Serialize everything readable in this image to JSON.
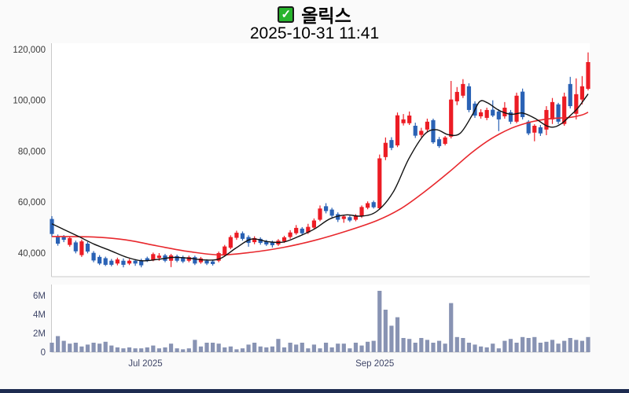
{
  "header": {
    "title": "올릭스",
    "timestamp": "2025-10-31 11:41",
    "checkbox_checked": true,
    "checkbox_glyph": "✓"
  },
  "colors": {
    "up_candle": "#ec1c24",
    "down_candle": "#2a62b5",
    "ma_short_line": "#111111",
    "ma_long_line": "#e8282d",
    "volume_bar": "#8893b3",
    "checkbox_green": "#27b42c",
    "axis_line": "#c9c9c9",
    "price_label": "#3a3a3a",
    "month_label": "#3f4668",
    "plot_bg": "#ffffff",
    "page_bg": "#fafafa",
    "bottom_bar": "#1d2b50"
  },
  "chart_data": {
    "type": "candlestick_volume",
    "title": "올릭스",
    "subtitle": "2025-10-31 11:41",
    "grid": "off",
    "legend": "none",
    "price_axis": {
      "min": 30500,
      "max": 122500,
      "tick_interval": 20000
    },
    "volume_axis": {
      "min": 0,
      "max": 7.3,
      "unit": "M"
    },
    "price_ticks": [
      {
        "label": "120,000",
        "value": 120000
      },
      {
        "label": "100,000",
        "value": 100000
      },
      {
        "label": "80,000",
        "value": 80000
      },
      {
        "label": "60,000",
        "value": 60000
      },
      {
        "label": "40,000",
        "value": 40000
      }
    ],
    "volume_ticks": [
      {
        "label": "6M",
        "value": 6
      },
      {
        "label": "4M",
        "value": 4
      },
      {
        "label": "2M",
        "value": 2
      },
      {
        "label": "0",
        "value": 0
      }
    ],
    "x_ticks": [
      {
        "label": "Jul 2025",
        "index": 15.7
      },
      {
        "label": "Sep 2025",
        "index": 54.2
      }
    ],
    "candles_format": [
      "open",
      "high",
      "low",
      "close",
      "volume_millions"
    ],
    "candles": [
      [
        53400,
        54500,
        46400,
        47500,
        1.0
      ],
      [
        46300,
        47300,
        42900,
        43700,
        1.7
      ],
      [
        46300,
        47100,
        44300,
        45200,
        1.2
      ],
      [
        43200,
        46600,
        42500,
        45900,
        0.9
      ],
      [
        44200,
        44900,
        39900,
        40700,
        1.0
      ],
      [
        39200,
        45300,
        38500,
        44600,
        0.6
      ],
      [
        43700,
        44400,
        39900,
        40600,
        0.8
      ],
      [
        40100,
        40800,
        36400,
        37100,
        1.0
      ],
      [
        38500,
        39200,
        35300,
        35900,
        0.9
      ],
      [
        38000,
        38600,
        34900,
        35400,
        1.1
      ],
      [
        37000,
        37700,
        34800,
        35400,
        0.7
      ],
      [
        35900,
        38200,
        35200,
        37500,
        0.5
      ],
      [
        37000,
        37900,
        34400,
        35400,
        0.4
      ],
      [
        35900,
        37700,
        35300,
        37000,
        0.5
      ],
      [
        37000,
        37600,
        35000,
        35900,
        0.4
      ],
      [
        37200,
        37800,
        34400,
        35200,
        0.4
      ],
      [
        38000,
        38600,
        36500,
        37000,
        0.5
      ],
      [
        37200,
        40200,
        36800,
        39600,
        0.7
      ],
      [
        38100,
        40000,
        37000,
        39000,
        0.4
      ],
      [
        39100,
        39700,
        36400,
        37000,
        0.5
      ],
      [
        37000,
        39700,
        34500,
        39100,
        0.9
      ],
      [
        38800,
        39400,
        36400,
        37000,
        0.4
      ],
      [
        38400,
        39000,
        36100,
        36700,
        0.3
      ],
      [
        37000,
        39000,
        36400,
        38400,
        0.4
      ],
      [
        38400,
        39000,
        35300,
        35900,
        1.3
      ],
      [
        36400,
        38500,
        35800,
        37900,
        0.6
      ],
      [
        37000,
        37600,
        35300,
        35900,
        1.0
      ],
      [
        36700,
        37300,
        35100,
        35700,
        1.0
      ],
      [
        37000,
        40600,
        36400,
        40000,
        0.9
      ],
      [
        39500,
        43200,
        38900,
        42600,
        0.5
      ],
      [
        42100,
        47000,
        41500,
        46300,
        0.6
      ],
      [
        46000,
        48800,
        45200,
        48000,
        0.3
      ],
      [
        47800,
        48500,
        44900,
        45600,
        0.4
      ],
      [
        46300,
        47000,
        42500,
        44000,
        0.8
      ],
      [
        44300,
        46600,
        43500,
        45900,
        1.0
      ],
      [
        45600,
        46200,
        43300,
        44000,
        0.6
      ],
      [
        44600,
        45200,
        42800,
        43400,
        0.5
      ],
      [
        44300,
        44900,
        42200,
        43100,
        0.6
      ],
      [
        43400,
        45500,
        42800,
        44900,
        1.4
      ],
      [
        44600,
        46800,
        44000,
        46200,
        0.5
      ],
      [
        46300,
        49000,
        45600,
        48100,
        1.0
      ],
      [
        47800,
        51000,
        47200,
        49900,
        0.8
      ],
      [
        49600,
        50200,
        47000,
        47800,
        1.0
      ],
      [
        48100,
        51500,
        47500,
        50300,
        0.4
      ],
      [
        50000,
        53600,
        49300,
        52800,
        0.8
      ],
      [
        53100,
        58700,
        52500,
        57500,
        0.4
      ],
      [
        58400,
        59600,
        55600,
        56500,
        1.0
      ],
      [
        57100,
        57800,
        54000,
        54700,
        0.5
      ],
      [
        55300,
        56000,
        52200,
        53100,
        0.9
      ],
      [
        53400,
        55000,
        51900,
        54400,
        0.9
      ],
      [
        54100,
        54700,
        52200,
        52800,
        0.4
      ],
      [
        53100,
        55300,
        52500,
        54700,
        1.0
      ],
      [
        54400,
        58700,
        53800,
        58100,
        0.7
      ],
      [
        57800,
        60300,
        57200,
        59600,
        1.1
      ],
      [
        60000,
        60600,
        57500,
        58000,
        1.2
      ],
      [
        57600,
        78700,
        57000,
        77200,
        6.5
      ],
      [
        77700,
        85400,
        76500,
        83300,
        4.5
      ],
      [
        84400,
        85500,
        80400,
        81300,
        2.8
      ],
      [
        82300,
        95200,
        81600,
        94100,
        3.7
      ],
      [
        91000,
        94600,
        90100,
        92500,
        1.5
      ],
      [
        91000,
        95600,
        90300,
        94000,
        1.4
      ],
      [
        90000,
        91200,
        85200,
        86100,
        1.0
      ],
      [
        86400,
        89200,
        85500,
        88000,
        1.5
      ],
      [
        88500,
        92800,
        87600,
        91600,
        1.3
      ],
      [
        92200,
        92800,
        82900,
        83500,
        1.0
      ],
      [
        84700,
        85600,
        81300,
        82000,
        1.2
      ],
      [
        82900,
        86000,
        82300,
        85400,
        0.9
      ],
      [
        85700,
        107600,
        85000,
        100300,
        5.2
      ],
      [
        99600,
        105200,
        98100,
        103300,
        1.6
      ],
      [
        101800,
        108300,
        100900,
        106400,
        1.5
      ],
      [
        105500,
        106700,
        95300,
        96200,
        1.0
      ],
      [
        98700,
        99600,
        93100,
        94000,
        0.8
      ],
      [
        93700,
        96500,
        92800,
        95300,
        0.6
      ],
      [
        93100,
        97100,
        92200,
        96200,
        0.5
      ],
      [
        96300,
        100000,
        93400,
        94000,
        0.9
      ],
      [
        95600,
        96500,
        87900,
        92500,
        0.4
      ],
      [
        93700,
        99300,
        92800,
        97100,
        1.2
      ],
      [
        95300,
        96200,
        90700,
        91600,
        1.4
      ],
      [
        91600,
        103000,
        91000,
        101800,
        1.0
      ],
      [
        103400,
        104600,
        92500,
        93400,
        1.6
      ],
      [
        91600,
        92200,
        86300,
        87000,
        1.5
      ],
      [
        87300,
        90600,
        83900,
        90000,
        1.6
      ],
      [
        89400,
        90300,
        86000,
        87000,
        1.0
      ],
      [
        88500,
        97700,
        86300,
        96200,
        1.1
      ],
      [
        92500,
        100900,
        90700,
        99300,
        1.3
      ],
      [
        98400,
        99000,
        90700,
        91600,
        0.9
      ],
      [
        90700,
        103000,
        90000,
        101500,
        1.2
      ],
      [
        106400,
        109200,
        96800,
        97700,
        1.5
      ],
      [
        94700,
        108600,
        92500,
        102400,
        1.3
      ],
      [
        100300,
        109500,
        98400,
        105500,
        1.2
      ],
      [
        104500,
        118800,
        103900,
        115000,
        1.6
      ]
    ],
    "ma_short_points": [
      [
        0,
        51500
      ],
      [
        1.8,
        49500
      ],
      [
        4.5,
        46500
      ],
      [
        7.1,
        43500
      ],
      [
        9.8,
        41000
      ],
      [
        12.4,
        38500
      ],
      [
        15.0,
        37000
      ],
      [
        17.7,
        37500
      ],
      [
        20.3,
        38300
      ],
      [
        23.0,
        38000
      ],
      [
        25.6,
        37300
      ],
      [
        28.2,
        37800
      ],
      [
        30.9,
        42000
      ],
      [
        33.5,
        45500
      ],
      [
        36.2,
        44500
      ],
      [
        38.8,
        44300
      ],
      [
        41.4,
        46500
      ],
      [
        44.1,
        49500
      ],
      [
        46.7,
        53500
      ],
      [
        49.4,
        55000
      ],
      [
        52.0,
        54500
      ],
      [
        54.6,
        56500
      ],
      [
        57.3,
        64000
      ],
      [
        59.9,
        77000
      ],
      [
        62.5,
        86500
      ],
      [
        64.5,
        88500
      ],
      [
        66.5,
        86500
      ],
      [
        68.5,
        87000
      ],
      [
        70.5,
        94000
      ],
      [
        71.8,
        99500
      ],
      [
        73.1,
        99000
      ],
      [
        75.1,
        96000
      ],
      [
        77.1,
        94500
      ],
      [
        79.0,
        95000
      ],
      [
        81.0,
        93000
      ],
      [
        83.0,
        90000
      ],
      [
        84.3,
        89500
      ],
      [
        85.6,
        91000
      ],
      [
        87.0,
        94000
      ],
      [
        88.3,
        97000
      ],
      [
        90,
        102500
      ]
    ],
    "ma_long_points": [
      [
        0,
        46500
      ],
      [
        7.1,
        46300
      ],
      [
        12.4,
        45200
      ],
      [
        17.7,
        42800
      ],
      [
        23.0,
        40600
      ],
      [
        28.2,
        39300
      ],
      [
        33.5,
        40300
      ],
      [
        38.8,
        42200
      ],
      [
        44.1,
        45000
      ],
      [
        49.4,
        48600
      ],
      [
        54.6,
        52800
      ],
      [
        58.6,
        57500
      ],
      [
        62.5,
        64000
      ],
      [
        66.5,
        71500
      ],
      [
        70.5,
        79500
      ],
      [
        73.8,
        85000
      ],
      [
        77.1,
        89000
      ],
      [
        80.4,
        91500
      ],
      [
        83.7,
        92800
      ],
      [
        87.0,
        93300
      ],
      [
        88.9,
        94200
      ],
      [
        90,
        95300
      ]
    ]
  }
}
